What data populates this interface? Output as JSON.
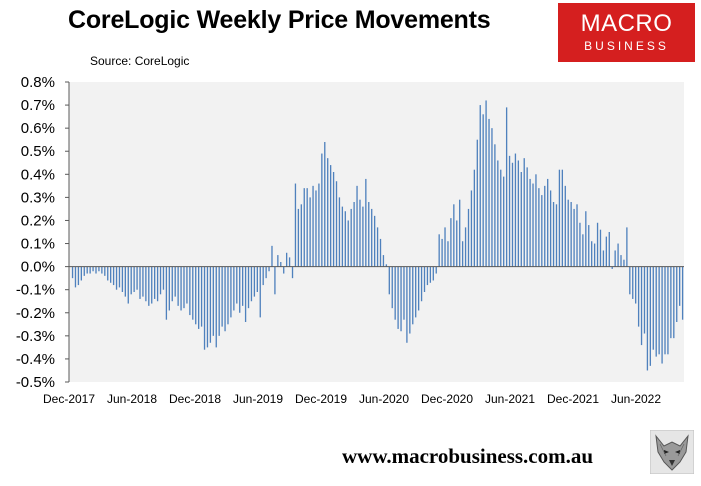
{
  "header": {
    "title": "CoreLogic Weekly Price Movements",
    "source": "Source: CoreLogic"
  },
  "logo": {
    "line1": "MACRO",
    "line2": "BUSINESS",
    "bg_color": "#d51f1f"
  },
  "footer": {
    "url": "www.macrobusiness.com.au",
    "mascot_icon": "wolf-icon"
  },
  "chart_data": {
    "type": "bar",
    "title": "CoreLogic Weekly Price Movements",
    "xlabel": "",
    "ylabel": "",
    "ylim": [
      -0.5,
      0.8
    ],
    "ytick_values": [
      -0.5,
      -0.4,
      -0.3,
      -0.2,
      -0.1,
      0.0,
      0.1,
      0.2,
      0.3,
      0.4,
      0.5,
      0.6,
      0.7,
      0.8
    ],
    "ytick_labels": [
      "-0.5%",
      "-0.4%",
      "-0.3%",
      "-0.2%",
      "-0.1%",
      "0.0%",
      "0.1%",
      "0.2%",
      "0.3%",
      "0.4%",
      "0.5%",
      "0.6%",
      "0.7%",
      "0.8%"
    ],
    "xtick_labels": [
      "Dec-2017",
      "Jun-2018",
      "Dec-2018",
      "Jun-2019",
      "Dec-2019",
      "Jun-2020",
      "Dec-2020",
      "Jun-2021",
      "Dec-2021",
      "Jun-2022"
    ],
    "grid": false,
    "plot_background": "#f2f2f2",
    "bar_color": "#4f81bd",
    "unit": "% weekly change",
    "series": [
      {
        "values": [
          -0.05,
          -0.09,
          -0.08,
          -0.06,
          -0.04,
          -0.03,
          -0.03,
          -0.02,
          -0.03,
          -0.02,
          -0.03,
          -0.04,
          -0.06,
          -0.07,
          -0.08,
          -0.1,
          -0.09,
          -0.11,
          -0.13,
          -0.16,
          -0.12,
          -0.11,
          -0.1,
          -0.14,
          -0.13,
          -0.15,
          -0.17,
          -0.16,
          -0.14,
          -0.15,
          -0.12,
          -0.1,
          -0.23,
          -0.19,
          -0.15,
          -0.13,
          -0.17,
          -0.19,
          -0.18,
          -0.16,
          -0.21,
          -0.23,
          -0.25,
          -0.27,
          -0.26,
          -0.36,
          -0.35,
          -0.33,
          -0.3,
          -0.35,
          -0.3,
          -0.26,
          -0.28,
          -0.25,
          -0.22,
          -0.19,
          -0.16,
          -0.2,
          -0.17,
          -0.24,
          -0.18,
          -0.15,
          -0.13,
          -0.11,
          -0.22,
          -0.08,
          -0.05,
          -0.02,
          0.09,
          -0.12,
          0.05,
          0.02,
          -0.03,
          0.06,
          0.04,
          -0.05,
          0.36,
          0.25,
          0.27,
          0.34,
          0.34,
          0.3,
          0.35,
          0.33,
          0.36,
          0.49,
          0.54,
          0.47,
          0.44,
          0.41,
          0.37,
          0.3,
          0.26,
          0.24,
          0.2,
          0.25,
          0.28,
          0.35,
          0.29,
          0.26,
          0.38,
          0.28,
          0.25,
          0.22,
          0.17,
          0.12,
          0.05,
          0.01,
          -0.12,
          -0.18,
          -0.23,
          -0.27,
          -0.28,
          -0.23,
          -0.33,
          -0.29,
          -0.25,
          -0.22,
          -0.19,
          -0.15,
          -0.11,
          -0.08,
          -0.07,
          -0.06,
          -0.03,
          0.14,
          0.12,
          0.17,
          0.11,
          0.21,
          0.27,
          0.2,
          0.29,
          0.11,
          0.17,
          0.25,
          0.33,
          0.42,
          0.55,
          0.7,
          0.66,
          0.72,
          0.64,
          0.6,
          0.53,
          0.46,
          0.42,
          0.39,
          0.69,
          0.48,
          0.45,
          0.49,
          0.46,
          0.41,
          0.47,
          0.43,
          0.38,
          0.36,
          0.4,
          0.34,
          0.31,
          0.35,
          0.38,
          0.33,
          0.28,
          0.27,
          0.42,
          0.42,
          0.35,
          0.29,
          0.28,
          0.25,
          0.27,
          0.19,
          0.14,
          0.24,
          0.18,
          0.11,
          0.1,
          0.19,
          0.16,
          0.07,
          0.13,
          0.15,
          -0.01,
          0.07,
          0.1,
          0.05,
          0.03,
          0.17,
          -0.12,
          -0.14,
          -0.16,
          -0.26,
          -0.34,
          -0.29,
          -0.45,
          -0.43,
          -0.36,
          -0.39,
          -0.38,
          -0.42,
          -0.38,
          -0.38,
          -0.31,
          -0.31,
          -0.24,
          -0.17,
          -0.23
        ]
      }
    ]
  }
}
